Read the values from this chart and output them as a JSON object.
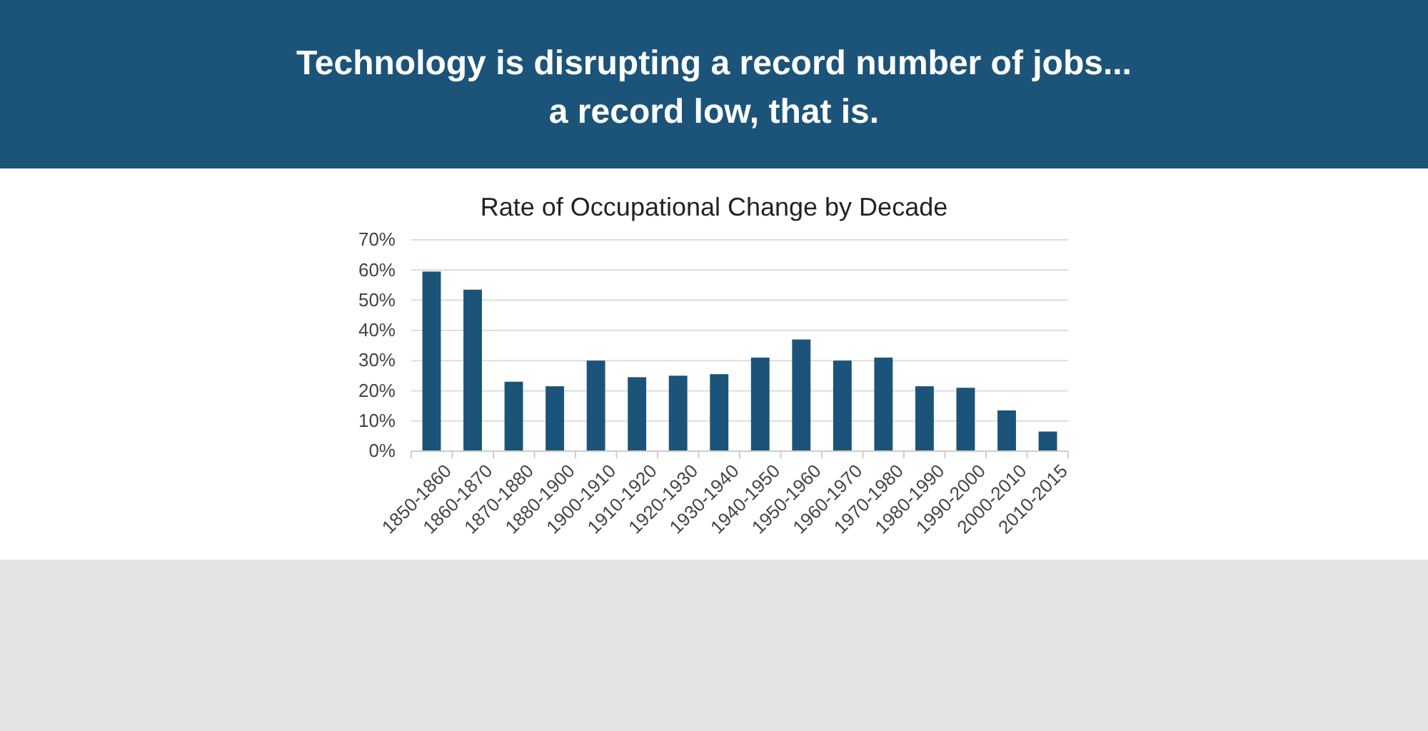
{
  "chart_data": {
    "type": "bar",
    "title": "Technology is disrupting a record number of jobs...\na record low, that is.",
    "subtitle": "Rate of Occupational Change by Decade",
    "categories": [
      "1850-1860",
      "1860-1870",
      "1870-1880",
      "1880-1900",
      "1900-1910",
      "1910-1920",
      "1920-1930",
      "1930-1940",
      "1940-1950",
      "1950-1960",
      "1960-1970",
      "1970-1980",
      "1980-1990",
      "1990-2000",
      "2000-2010",
      "2010-2015"
    ],
    "values": [
      59.5,
      53.5,
      23,
      21.5,
      30,
      24.5,
      25,
      25.5,
      31,
      37,
      30,
      31,
      21.5,
      21,
      13.5,
      6.5
    ],
    "color": "#1b5478",
    "ylim": [
      0,
      70
    ],
    "yticks": [
      {
        "value": 0,
        "label": "0%"
      },
      {
        "value": 10,
        "label": "10%"
      },
      {
        "value": 20,
        "label": "20%"
      },
      {
        "value": 30,
        "label": "30%"
      },
      {
        "value": 40,
        "label": "40%"
      },
      {
        "value": 50,
        "label": "50%"
      },
      {
        "value": 60,
        "label": "60%"
      },
      {
        "value": 70,
        "label": "70%"
      }
    ],
    "grid": "y"
  }
}
